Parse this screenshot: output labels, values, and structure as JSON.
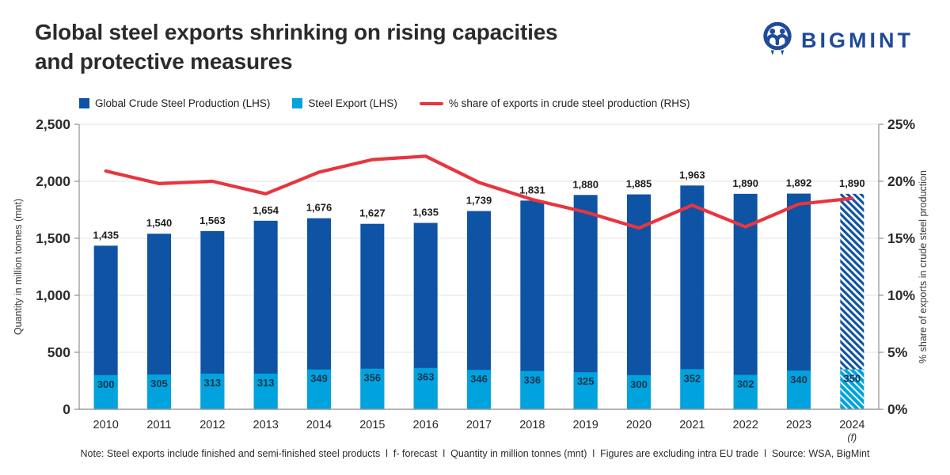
{
  "header": {
    "title_line1": "Global steel exports shrinking on rising capacities",
    "title_line2": "and protective measures",
    "logo_text": "BIGMINT",
    "logo_color": "#1e4b9a"
  },
  "legend": [
    {
      "label": "Global Crude Steel Production (LHS)",
      "color": "#0f53a4",
      "type": "square"
    },
    {
      "label": "Steel Export (LHS)",
      "color": "#00a3dd",
      "type": "square"
    },
    {
      "label": "% share of exports in crude steel production (RHS)",
      "color": "#e8353e",
      "type": "line"
    }
  ],
  "chart_data": {
    "type": "bar+line",
    "categories": [
      "2010",
      "2011",
      "2012",
      "2013",
      "2014",
      "2015",
      "2016",
      "2017",
      "2018",
      "2019",
      "2020",
      "2021",
      "2022",
      "2023",
      "2024"
    ],
    "forecast_index": 14,
    "forecast_suffix": "(f)",
    "series": [
      {
        "name": "Global Crude Steel Production (LHS)",
        "type": "bar",
        "axis": "left",
        "color": "#0f53a4",
        "values": [
          1435,
          1540,
          1563,
          1654,
          1676,
          1627,
          1635,
          1739,
          1831,
          1880,
          1885,
          1963,
          1890,
          1892,
          1890
        ]
      },
      {
        "name": "Steel Export (LHS)",
        "type": "bar",
        "axis": "left",
        "color": "#00a3dd",
        "values": [
          300,
          305,
          313,
          313,
          349,
          356,
          363,
          346,
          336,
          325,
          300,
          352,
          302,
          340,
          350
        ]
      },
      {
        "name": "% share of exports in crude steel production (RHS)",
        "type": "line",
        "axis": "right",
        "color": "#e8353e",
        "values": [
          20.9,
          19.8,
          20.0,
          18.9,
          20.8,
          21.9,
          22.2,
          19.9,
          18.4,
          17.3,
          15.9,
          17.9,
          16.0,
          18.0,
          18.5
        ]
      }
    ],
    "left_axis": {
      "label": "Quantity in million tonnes (mnt)",
      "min": 0,
      "max": 2500,
      "ticks": [
        "0",
        "500",
        "1,000",
        "1,500",
        "2,000",
        "2,500"
      ]
    },
    "right_axis": {
      "label": "% share of exports in crude steel production",
      "min": 0,
      "max": 25,
      "ticks": [
        "0%",
        "5%",
        "10%",
        "15%",
        "20%",
        "25%"
      ]
    },
    "grid": true,
    "legend_position": "top"
  },
  "footer": {
    "note": "Note: Steel exports include finished and semi-finished steel products  l  f- forecast  l  Quantity in million tonnes (mnt)  l  Figures are excluding intra EU trade  l  Source: WSA, BigMint"
  }
}
